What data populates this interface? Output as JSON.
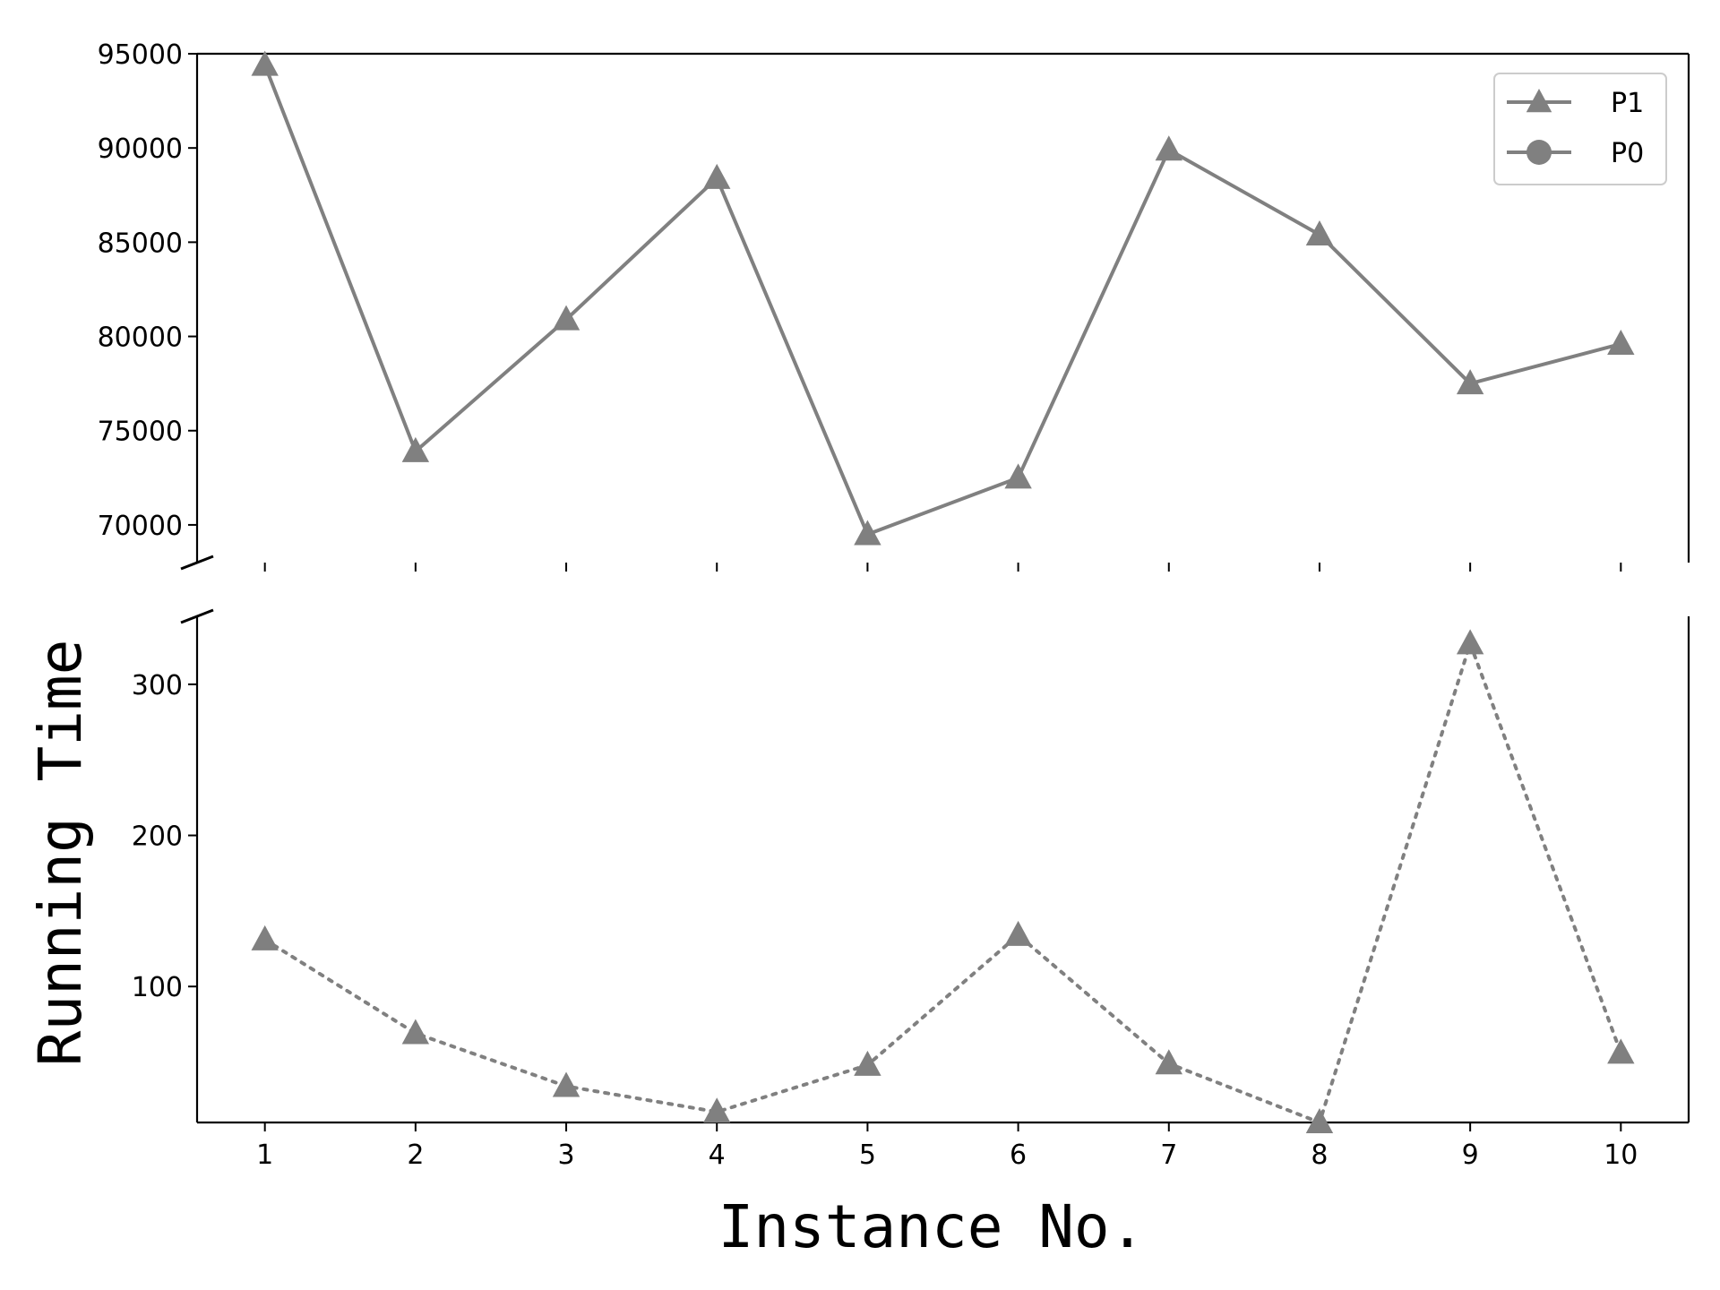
{
  "chart_data": {
    "type": "line",
    "xlabel": "Instance No.",
    "ylabel": "Running Time",
    "x": [
      1,
      2,
      3,
      4,
      5,
      6,
      7,
      8,
      9,
      10
    ],
    "x_ticks": [
      "1",
      "2",
      "3",
      "4",
      "5",
      "6",
      "7",
      "8",
      "9",
      "10"
    ],
    "broken_y_axis": true,
    "panels": [
      {
        "position": "top",
        "ylim": [
          68000,
          95000
        ],
        "y_ticks": [
          {
            "value": 70000,
            "label": "70000"
          },
          {
            "value": 75000,
            "label": "75000"
          },
          {
            "value": 80000,
            "label": "80000"
          },
          {
            "value": 85000,
            "label": "85000"
          },
          {
            "value": 90000,
            "label": "90000"
          },
          {
            "value": 95000,
            "label": "95000"
          }
        ]
      },
      {
        "position": "bottom",
        "ylim": [
          10,
          345
        ],
        "y_ticks": [
          {
            "value": 100,
            "label": "100"
          },
          {
            "value": 200,
            "label": "200"
          },
          {
            "value": 300,
            "label": "300"
          }
        ]
      }
    ],
    "series": [
      {
        "name": "P1",
        "panel": "top",
        "marker": "triangle",
        "line_style": "solid",
        "color": "#808080",
        "values": [
          94400,
          73900,
          80900,
          88400,
          69500,
          72500,
          89900,
          85400,
          77500,
          79600
        ]
      },
      {
        "name": "P0",
        "panel": "bottom",
        "marker": "triangle",
        "line_style": "dotted",
        "color": "#808080",
        "values": [
          131,
          69,
          34,
          17,
          48,
          134,
          49,
          10,
          327,
          56
        ]
      }
    ],
    "legend": {
      "placement": "top-right",
      "entries": [
        {
          "label": "P1",
          "marker": "triangle"
        },
        {
          "label": "P0",
          "marker": "circle"
        }
      ]
    },
    "grid": false
  }
}
